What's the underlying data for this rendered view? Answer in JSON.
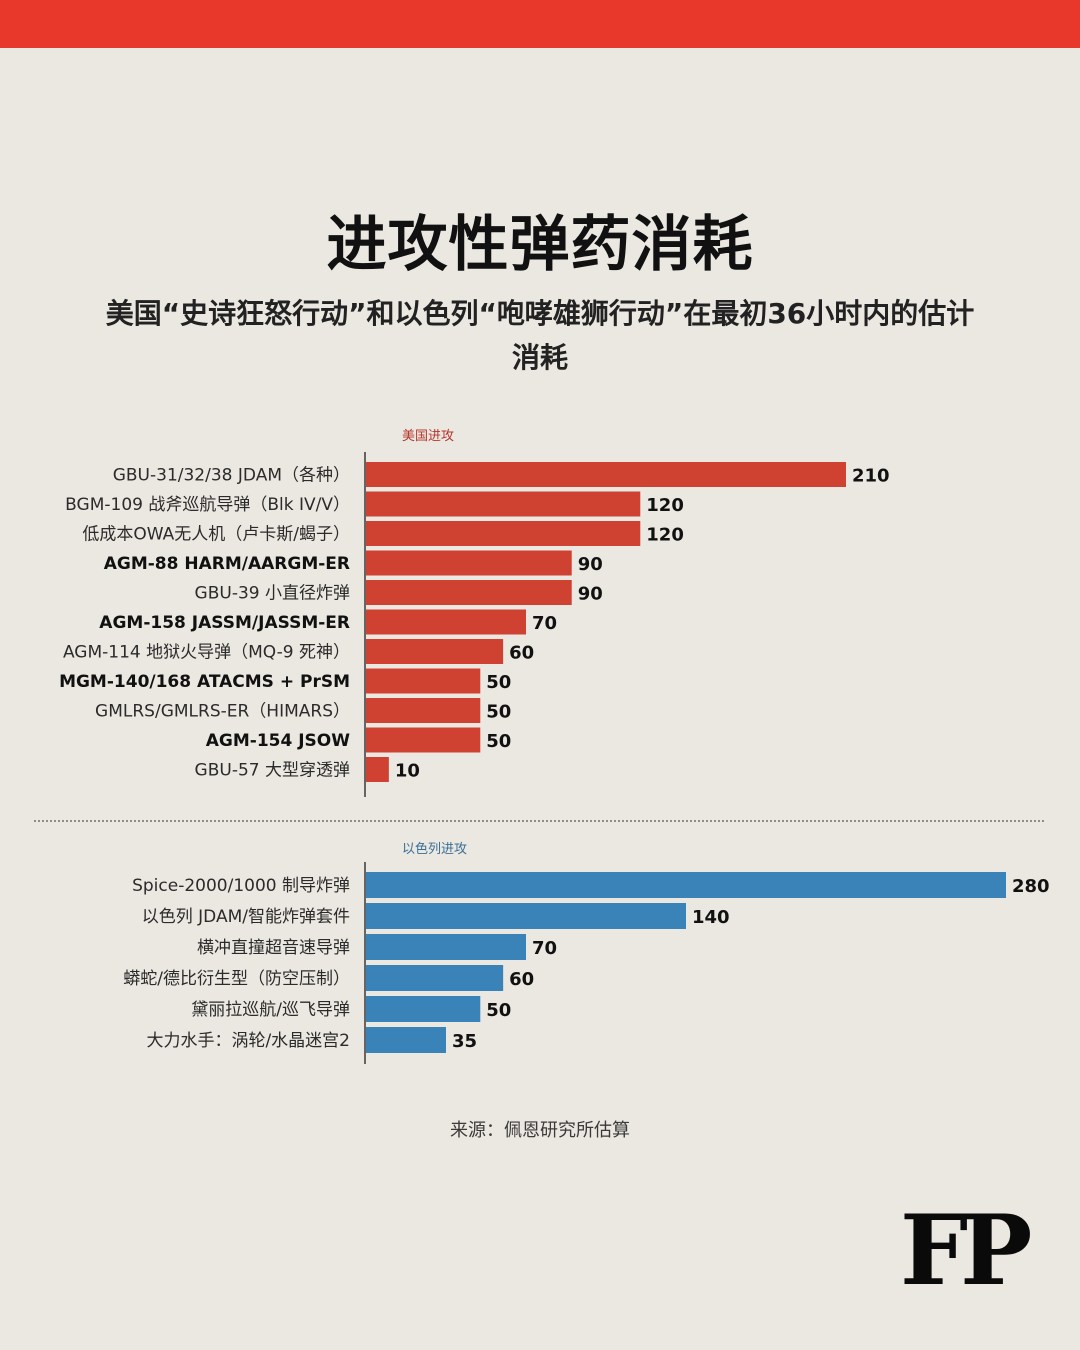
{
  "header": {
    "title": "进攻性弹药消耗",
    "subtitle": "美国“史诗狂怒行动”和以色列“咆哮雄狮行动”在最初36小时内的估计消耗"
  },
  "colors": {
    "us_bar": "#cf4232",
    "israel_bar": "#3a83b8",
    "us_section_label": "#b5352a",
    "israel_section_label": "#3a6f96",
    "top_band": "#e8382b"
  },
  "chart_data": {
    "type": "bar",
    "orientation": "horizontal",
    "title": "进攻性弹药消耗",
    "subtitle": "美国“史诗狂怒行动”和以色列“咆哮雄狮行动”在最初36小时内的估计消耗",
    "xlim": [
      0,
      280
    ],
    "grid": false,
    "groups": [
      {
        "name": "美国进攻",
        "categories": [
          "GBU-31/32/38 JDAM（各种）",
          "BGM-109 战斧巡航导弹（Blk IV/V）",
          "低成本OWA无人机（卢卡斯/蝎子）",
          "AGM-88 HARM/AARGM-ER",
          "GBU-39 小直径炸弹",
          "AGM-158 JASSM/JASSM-ER",
          "AGM-114 地狱火导弹（MQ-9 死神）",
          "MGM-140/168 ATACMS + PrSM",
          "GMLRS/GMLRS-ER（HIMARS）",
          "AGM-154 JSOW",
          "GBU-57 大型穿透弹"
        ],
        "values": [
          210,
          120,
          120,
          90,
          90,
          70,
          60,
          50,
          50,
          50,
          10
        ],
        "bold": [
          false,
          false,
          false,
          true,
          false,
          true,
          false,
          true,
          false,
          true,
          false
        ]
      },
      {
        "name": "以色列进攻",
        "categories": [
          "Spice-2000/1000 制导炸弹",
          "以色列 JDAM/智能炸弹套件",
          "横冲直撞超音速导弹",
          "蟒蛇/德比衍生型（防空压制）",
          "黛丽拉巡航/巡飞导弹",
          "大力水手：涡轮/水晶迷宫2"
        ],
        "values": [
          280,
          140,
          70,
          60,
          50,
          35
        ],
        "bold": [
          false,
          false,
          false,
          false,
          false,
          false
        ]
      }
    ]
  },
  "footer": {
    "source": "来源：佩恩研究所估算",
    "logo": "FP"
  }
}
